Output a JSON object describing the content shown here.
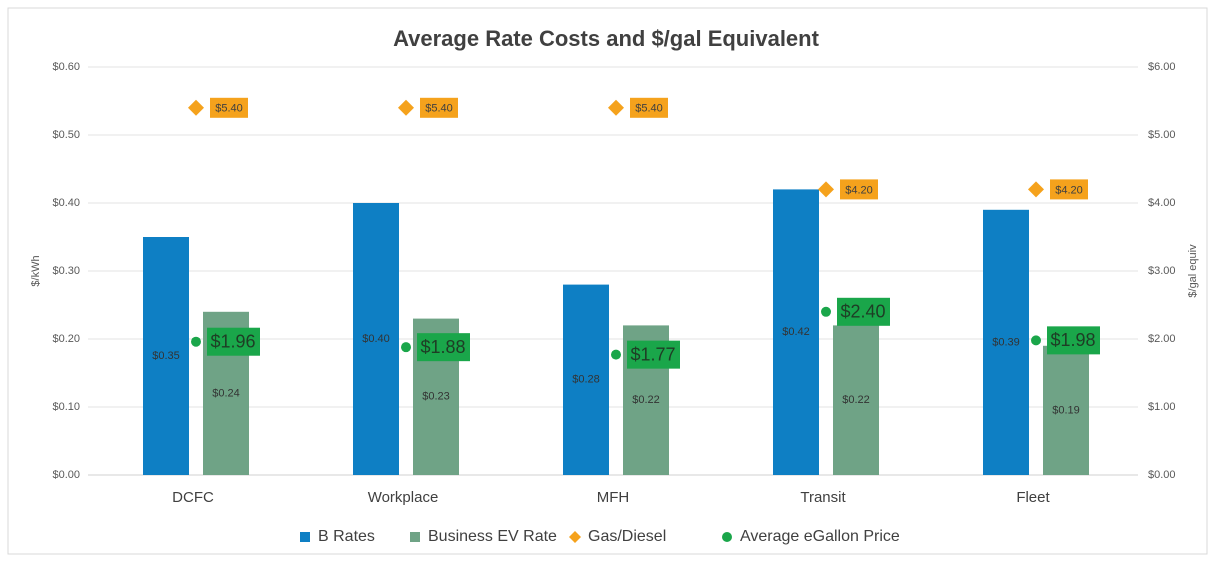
{
  "chart_data": {
    "type": "bar",
    "title": "Average Rate Costs and $/gal Equivalent",
    "ylabel": "$/kWh",
    "y2label": "$/gal equiv",
    "categories": [
      "DCFC",
      "Workplace",
      "MFH",
      "Transit",
      "Fleet"
    ],
    "ylim": [
      0,
      0.6
    ],
    "yticks": [
      {
        "value": 0,
        "label": "$0.00"
      },
      {
        "value": 0.1,
        "label": "$0.10"
      },
      {
        "value": 0.2,
        "label": "$0.20"
      },
      {
        "value": 0.3,
        "label": "$0.30"
      },
      {
        "value": 0.4,
        "label": "$0.40"
      },
      {
        "value": 0.5,
        "label": "$0.50"
      },
      {
        "value": 0.6,
        "label": "$0.60"
      }
    ],
    "y2lim": [
      0,
      6
    ],
    "y2ticks": [
      {
        "value": 0,
        "label": "$0.00"
      },
      {
        "value": 1,
        "label": "$1.00"
      },
      {
        "value": 2,
        "label": "$2.00"
      },
      {
        "value": 3,
        "label": "$3.00"
      },
      {
        "value": 4,
        "label": "$4.00"
      },
      {
        "value": 5,
        "label": "$5.00"
      },
      {
        "value": 6,
        "label": "$6.00"
      }
    ],
    "grid": true,
    "legend": "bottom",
    "series": [
      {
        "name": "B Rates",
        "type": "bar",
        "color": "#0e7fc4",
        "values": [
          0.35,
          0.4,
          0.28,
          0.42,
          0.39
        ],
        "value_labels": [
          "$0.35",
          "$0.40",
          "$0.28",
          "$0.42",
          "$0.39"
        ]
      },
      {
        "name": "Business EV Rate",
        "type": "bar",
        "color": "#6fa386",
        "values": [
          0.24,
          0.23,
          0.22,
          0.22,
          0.19
        ],
        "value_labels": [
          "$0.24",
          "$0.23",
          "$0.22",
          "$0.22",
          "$0.19"
        ]
      },
      {
        "name": "Gas/Diesel",
        "type": "diamond",
        "axis": "y2",
        "color": "#f5a21c",
        "values": [
          5.4,
          5.4,
          5.4,
          4.2,
          4.2
        ],
        "value_labels": [
          "$5.40",
          "$5.40",
          "$5.40",
          "$4.20",
          "$4.20"
        ]
      },
      {
        "name": "Average eGallon Price",
        "type": "dot",
        "axis": "y2",
        "color": "#1aa64a",
        "values": [
          1.96,
          1.88,
          1.77,
          2.4,
          1.98
        ],
        "value_labels": [
          "$1.96",
          "$1.88",
          "$1.77",
          "$2.40",
          "$1.98"
        ]
      }
    ]
  }
}
